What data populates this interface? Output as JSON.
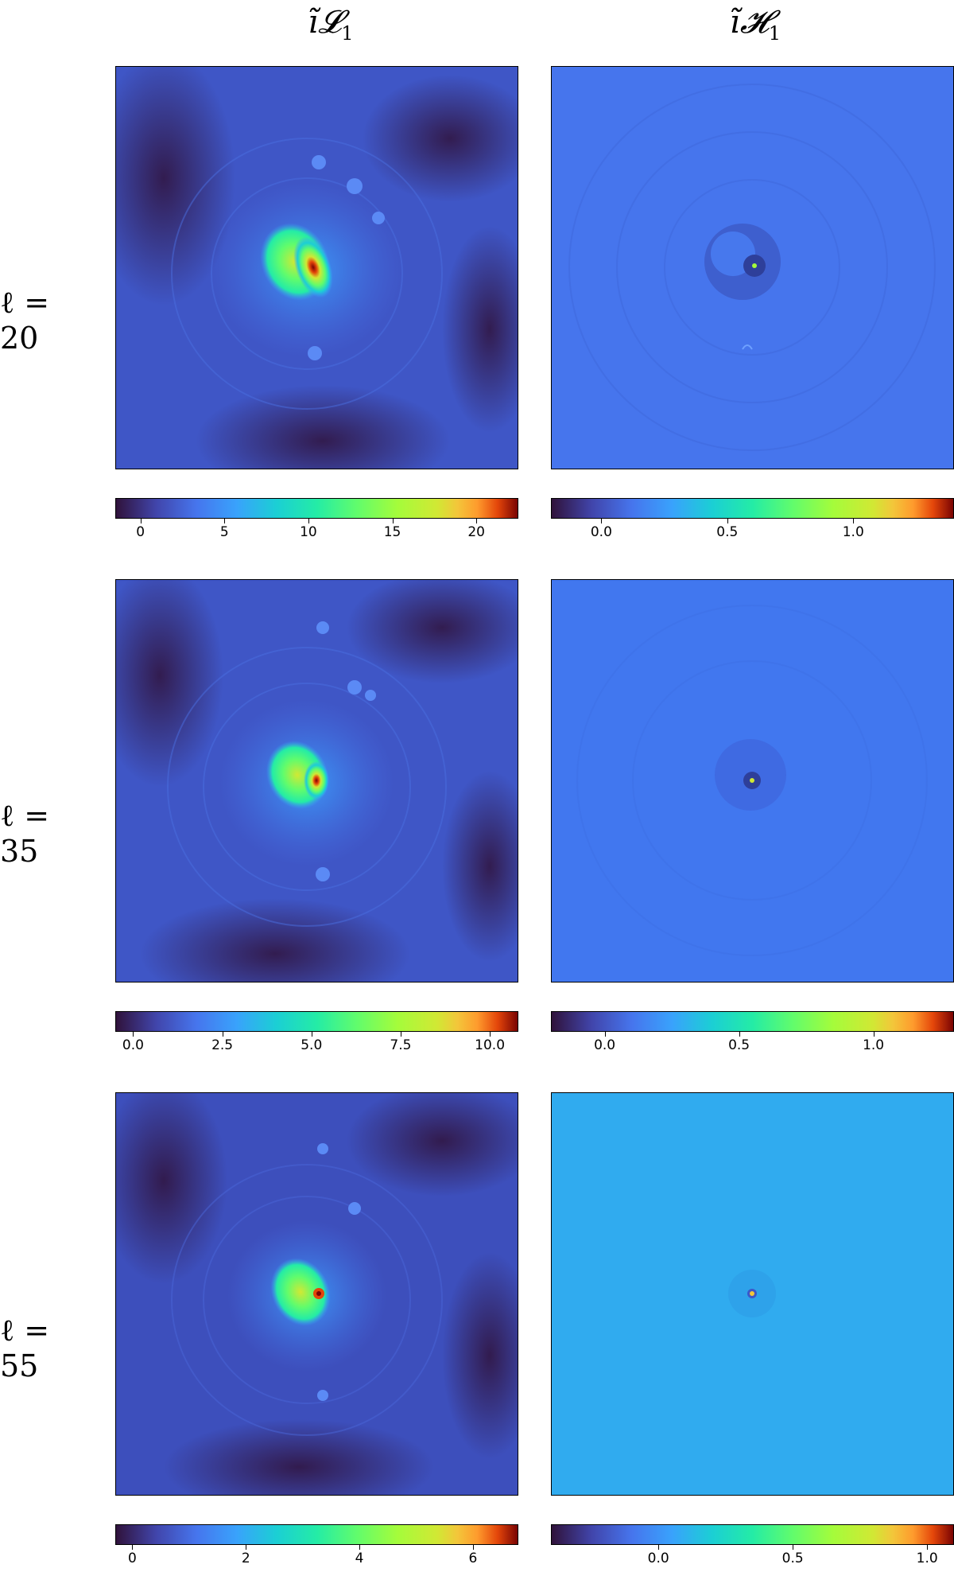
{
  "columns": [
    {
      "base": "ĩ",
      "script": "𝓛",
      "sub": "1"
    },
    {
      "base": "ĩ",
      "script": "𝓗",
      "sub": "1"
    }
  ],
  "rows": [
    {
      "label": "ℓ = 20"
    },
    {
      "label": "ℓ = 35"
    },
    {
      "label": "ℓ = 55"
    }
  ],
  "colormap": "turbo",
  "chart_data": [
    {
      "type": "heatmap",
      "row": "ℓ = 20",
      "column": "L1",
      "colorbar_range": [
        -1.5,
        22.5
      ],
      "ticks": [
        0,
        5,
        10,
        15,
        20
      ],
      "tick_labels": [
        "0",
        "5",
        "10",
        "15",
        "20"
      ]
    },
    {
      "type": "heatmap",
      "row": "ℓ = 20",
      "column": "H1",
      "colorbar_range": [
        -0.2,
        1.4
      ],
      "ticks": [
        0.0,
        0.5,
        1.0
      ],
      "tick_labels": [
        "0.0",
        "0.5",
        "1.0"
      ]
    },
    {
      "type": "heatmap",
      "row": "ℓ = 35",
      "column": "L1",
      "colorbar_range": [
        -0.5,
        10.8
      ],
      "ticks": [
        0.0,
        2.5,
        5.0,
        7.5,
        10.0
      ],
      "tick_labels": [
        "0.0",
        "2.5",
        "5.0",
        "7.5",
        "10.0"
      ]
    },
    {
      "type": "heatmap",
      "row": "ℓ = 35",
      "column": "H1",
      "colorbar_range": [
        -0.2,
        1.3
      ],
      "ticks": [
        0.0,
        0.5,
        1.0
      ],
      "tick_labels": [
        "0.0",
        "0.5",
        "1.0"
      ]
    },
    {
      "type": "heatmap",
      "row": "ℓ = 55",
      "column": "L1",
      "colorbar_range": [
        -0.3,
        6.8
      ],
      "ticks": [
        0,
        2,
        4,
        6
      ],
      "tick_labels": [
        "0",
        "2",
        "4",
        "6"
      ]
    },
    {
      "type": "heatmap",
      "row": "ℓ = 55",
      "column": "H1",
      "colorbar_range": [
        -0.4,
        1.1
      ],
      "ticks": [
        0.0,
        0.5,
        1.0
      ],
      "tick_labels": [
        "0.0",
        "0.5",
        "1.0"
      ]
    }
  ]
}
